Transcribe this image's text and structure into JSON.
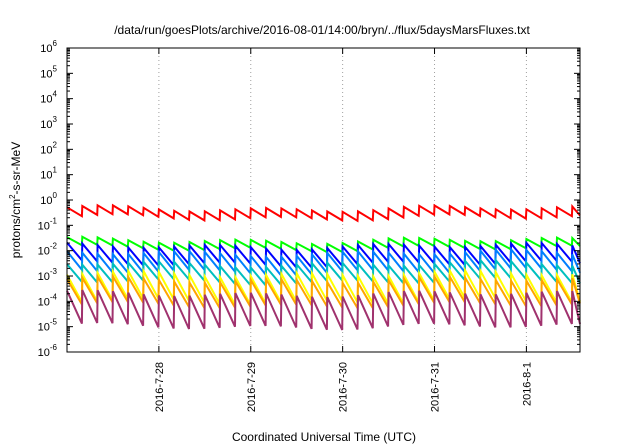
{
  "chart_data": {
    "type": "line",
    "title": "/data/run/goesPlots/archive/2016-08-01/14:00/bryn/../flux/5daysMarsFluxes.txt",
    "xlabel": "Coordinated Universal Time (UTC)",
    "ylabel": "protons/cm2-s-sr-MeV",
    "ylabel_base": "protons/cm",
    "ylabel_sup": "2",
    "ylabel_rest": "-s-sr-MeV",
    "yscale": "log",
    "ylim": [
      1e-06,
      1000000.0
    ],
    "xlim": [
      "2016-07-27 00:00",
      "2016-08-01 14:00"
    ],
    "xticks": [
      {
        "date": "2016-07-28",
        "label": "2016-7-28"
      },
      {
        "date": "2016-07-29",
        "label": "2016-7-29"
      },
      {
        "date": "2016-07-30",
        "label": "2016-7-30"
      },
      {
        "date": "2016-07-31",
        "label": "2016-7-31"
      },
      {
        "date": "2016-08-01",
        "label": "2016-8-1"
      }
    ],
    "yticks": [
      {
        "base": "10",
        "exp": "-6"
      },
      {
        "base": "10",
        "exp": "-5"
      },
      {
        "base": "10",
        "exp": "-4"
      },
      {
        "base": "10",
        "exp": "-3"
      },
      {
        "base": "10",
        "exp": "-2"
      },
      {
        "base": "10",
        "exp": "-1"
      },
      {
        "base": "10",
        "exp": "0"
      },
      {
        "base": "10",
        "exp": "1"
      },
      {
        "base": "10",
        "exp": "2"
      },
      {
        "base": "10",
        "exp": "3"
      },
      {
        "base": "10",
        "exp": "4"
      },
      {
        "base": "10",
        "exp": "5"
      },
      {
        "base": "10",
        "exp": "6"
      }
    ],
    "grid": true,
    "legend": "none",
    "pattern": "sawtooth",
    "cycle_hours": 4,
    "series": [
      {
        "color": "#ff0000",
        "high": 0.45,
        "low": 0.2
      },
      {
        "color": "#00ff00",
        "high": 0.025,
        "low": 0.012
      },
      {
        "color": "#0000ff",
        "high": 0.015,
        "low": 0.003
      },
      {
        "color": "#007fff",
        "high": 0.008,
        "low": 0.0015
      },
      {
        "color": "#00bfbf",
        "high": 0.003,
        "low": 0.0006
      },
      {
        "color": "#ffff00",
        "high": 0.0012,
        "low": 0.0001
      },
      {
        "color": "#ffa500",
        "high": 0.0007,
        "low": 7e-05
      },
      {
        "color": "#a0326e",
        "high": 0.0002,
        "low": 1e-05
      }
    ]
  }
}
